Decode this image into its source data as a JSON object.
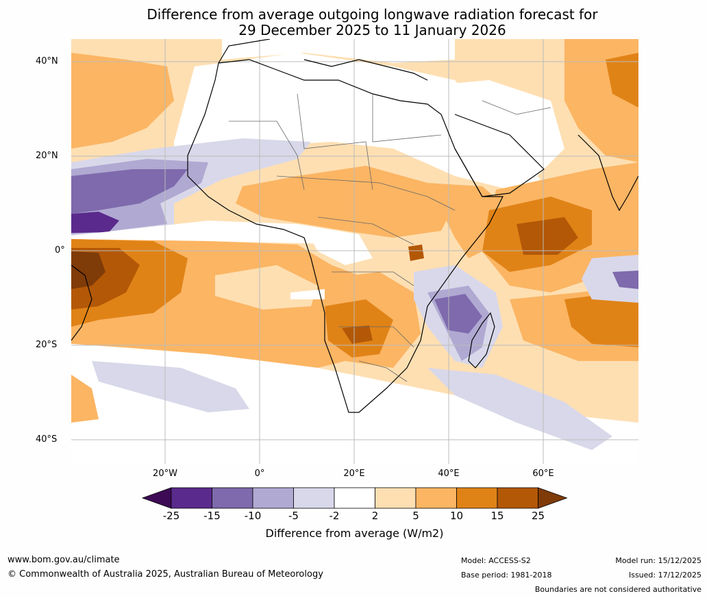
{
  "title": {
    "line1": "Difference from average outgoing longwave radiation forecast for",
    "line2": "29 December 2025 to 11 January 2026"
  },
  "axes": {
    "lat_labels": [
      "40°N",
      "20°N",
      "0°",
      "20°S",
      "40°S"
    ],
    "lon_labels": [
      "20°W",
      "0°",
      "20°E",
      "40°E",
      "60°E"
    ]
  },
  "colorbar": {
    "levels": [
      "-25",
      "-15",
      "-10",
      "-5",
      "-2",
      "2",
      "5",
      "10",
      "15",
      "25"
    ],
    "colors": [
      "#3d0a55",
      "#5a2a8c",
      "#7e6aac",
      "#b0a9d2",
      "#d8d8ea",
      "#ffffff",
      "#fedfb2",
      "#fbb563",
      "#e08317",
      "#b35806",
      "#7f3b08"
    ],
    "title": "Difference from average (W/m2)"
  },
  "footer": {
    "url": "www.bom.gov.au/climate",
    "copyright": "© Commonwealth of Australia 2025, Australian Bureau of Meteorology",
    "model": "Model: ACCESS-S2",
    "base_period": "Base period: 1981-2018",
    "model_run": "Model run: 15/12/2025",
    "issued": "Issued: 17/12/2025",
    "disclaimer": "Boundaries are not considered authoritative"
  }
}
